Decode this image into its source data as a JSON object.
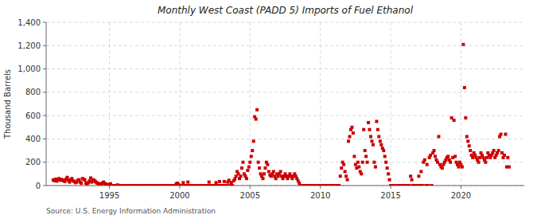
{
  "chart_data": {
    "type": "scatter",
    "title": "Monthly West Coast (PADD 5) Imports of Fuel Ethanol",
    "y_label": "Thousand Barrels",
    "annotations": [
      "Source: U.S. Energy Information Administration"
    ],
    "color": "#CC0000",
    "marker": "square",
    "grid": true,
    "xlim": [
      1990.5,
      2024.5
    ],
    "xticks": [
      1995,
      2000,
      2005,
      2010,
      2015,
      2020
    ],
    "ylim": [
      0,
      1400
    ],
    "yticks": [
      0,
      200,
      400,
      600,
      800,
      {
        "value": 1000,
        "label": "1,000"
      },
      {
        "value": 1200,
        "label": "1,200"
      },
      {
        "value": 1400,
        "label": "1,400"
      }
    ],
    "x": [
      1991.0,
      1991.083,
      1991.167,
      1991.25,
      1991.333,
      1991.417,
      1991.5,
      1991.583,
      1991.667,
      1991.75,
      1991.833,
      1991.917,
      1992.0,
      1992.083,
      1992.167,
      1992.25,
      1992.333,
      1992.417,
      1992.5,
      1992.583,
      1992.667,
      1992.75,
      1992.833,
      1992.917,
      1993.0,
      1993.083,
      1993.167,
      1993.25,
      1993.333,
      1993.417,
      1993.5,
      1993.583,
      1993.667,
      1993.75,
      1993.833,
      1993.917,
      1994.0,
      1994.083,
      1994.167,
      1994.25,
      1994.333,
      1994.417,
      1994.5,
      1994.583,
      1994.667,
      1994.75,
      1994.833,
      1994.917,
      1995.0,
      1995.083,
      1995.167,
      1995.25,
      1995.333,
      1995.417,
      1995.5,
      1995.583,
      1995.667,
      1995.75,
      1995.833,
      1995.917,
      1996.0,
      1996.083,
      1996.167,
      1996.25,
      1996.333,
      1996.417,
      1996.5,
      1996.583,
      1996.667,
      1996.75,
      1996.833,
      1996.917,
      1997.0,
      1997.083,
      1997.167,
      1997.25,
      1997.333,
      1997.417,
      1997.5,
      1997.583,
      1997.667,
      1997.75,
      1997.833,
      1997.917,
      1998.0,
      1998.083,
      1998.167,
      1998.25,
      1998.333,
      1998.417,
      1998.5,
      1998.583,
      1998.667,
      1998.75,
      1998.833,
      1998.917,
      1999.0,
      1999.083,
      1999.167,
      1999.25,
      1999.333,
      1999.417,
      1999.5,
      1999.583,
      1999.667,
      1999.75,
      1999.833,
      1999.917,
      2000.0,
      2000.083,
      2000.167,
      2000.25,
      2000.333,
      2000.417,
      2000.5,
      2000.583,
      2000.667,
      2000.75,
      2000.833,
      2000.917,
      2001.0,
      2001.083,
      2001.167,
      2001.25,
      2001.333,
      2001.417,
      2001.5,
      2001.583,
      2001.667,
      2001.75,
      2001.833,
      2001.917,
      2002.0,
      2002.083,
      2002.167,
      2002.25,
      2002.333,
      2002.417,
      2002.5,
      2002.583,
      2002.667,
      2002.75,
      2002.833,
      2002.917,
      2003.0,
      2003.083,
      2003.167,
      2003.25,
      2003.333,
      2003.417,
      2003.5,
      2003.583,
      2003.667,
      2003.75,
      2003.833,
      2003.917,
      2004.0,
      2004.083,
      2004.167,
      2004.25,
      2004.333,
      2004.417,
      2004.5,
      2004.583,
      2004.667,
      2004.75,
      2004.833,
      2004.917,
      2005.0,
      2005.083,
      2005.167,
      2005.25,
      2005.333,
      2005.417,
      2005.5,
      2005.583,
      2005.667,
      2005.75,
      2005.833,
      2005.917,
      2006.0,
      2006.083,
      2006.167,
      2006.25,
      2006.333,
      2006.417,
      2006.5,
      2006.583,
      2006.667,
      2006.75,
      2006.833,
      2006.917,
      2007.0,
      2007.083,
      2007.167,
      2007.25,
      2007.333,
      2007.417,
      2007.5,
      2007.583,
      2007.667,
      2007.75,
      2007.833,
      2007.917,
      2008.0,
      2008.083,
      2008.167,
      2008.25,
      2008.333,
      2008.417,
      2008.5,
      2008.583,
      2008.667,
      2008.75,
      2008.833,
      2008.917,
      2009.0,
      2009.083,
      2009.167,
      2009.25,
      2009.333,
      2009.417,
      2009.5,
      2009.583,
      2009.667,
      2009.75,
      2009.833,
      2009.917,
      2010.0,
      2010.083,
      2010.167,
      2010.25,
      2010.333,
      2010.417,
      2010.5,
      2010.583,
      2010.667,
      2010.75,
      2010.833,
      2010.917,
      2011.0,
      2011.083,
      2011.167,
      2011.25,
      2011.333,
      2011.417,
      2011.5,
      2011.583,
      2011.667,
      2011.75,
      2011.833,
      2011.917,
      2012.0,
      2012.083,
      2012.167,
      2012.25,
      2012.333,
      2012.417,
      2012.5,
      2012.583,
      2012.667,
      2012.75,
      2012.833,
      2012.917,
      2013.0,
      2013.083,
      2013.167,
      2013.25,
      2013.333,
      2013.417,
      2013.5,
      2013.583,
      2013.667,
      2013.75,
      2013.833,
      2013.917,
      2014.0,
      2014.083,
      2014.167,
      2014.25,
      2014.333,
      2014.417,
      2014.5,
      2014.583,
      2014.667,
      2014.75,
      2014.833,
      2014.917,
      2015.0,
      2015.083,
      2015.167,
      2015.25,
      2015.333,
      2015.417,
      2015.5,
      2015.583,
      2015.667,
      2015.75,
      2015.833,
      2015.917,
      2016.0,
      2016.083,
      2016.167,
      2016.25,
      2016.333,
      2016.417,
      2016.5,
      2016.583,
      2016.667,
      2016.75,
      2016.833,
      2016.917,
      2017.0,
      2017.083,
      2017.167,
      2017.25,
      2017.333,
      2017.417,
      2017.5,
      2017.583,
      2017.667,
      2017.75,
      2017.833,
      2017.917,
      2018.0,
      2018.083,
      2018.167,
      2018.25,
      2018.333,
      2018.417,
      2018.5,
      2018.583,
      2018.667,
      2018.75,
      2018.833,
      2018.917,
      2019.0,
      2019.083,
      2019.167,
      2019.25,
      2019.333,
      2019.417,
      2019.5,
      2019.583,
      2019.667,
      2019.75,
      2019.833,
      2019.917,
      2020.0,
      2020.083,
      2020.167,
      2020.25,
      2020.333,
      2020.417,
      2020.5,
      2020.583,
      2020.667,
      2020.75,
      2020.833,
      2020.917,
      2021.0,
      2021.083,
      2021.167,
      2021.25,
      2021.333,
      2021.417,
      2021.5,
      2021.583,
      2021.667,
      2021.75,
      2021.833,
      2021.917,
      2022.0,
      2022.083,
      2022.167,
      2022.25,
      2022.333,
      2022.417,
      2022.5,
      2022.583,
      2022.667,
      2022.75,
      2022.833,
      2022.917,
      2023.0,
      2023.083,
      2023.167,
      2023.25,
      2023.333,
      2023.417
    ],
    "values": [
      48,
      42,
      55,
      38,
      50,
      60,
      45,
      52,
      48,
      40,
      35,
      55,
      70,
      45,
      30,
      50,
      60,
      40,
      35,
      25,
      30,
      45,
      50,
      30,
      20,
      60,
      55,
      48,
      20,
      15,
      25,
      40,
      65,
      30,
      50,
      45,
      35,
      25,
      20,
      15,
      10,
      15,
      20,
      30,
      18,
      12,
      8,
      5,
      10,
      15,
      0,
      0,
      0,
      0,
      0,
      5,
      0,
      0,
      0,
      0,
      0,
      0,
      0,
      0,
      0,
      0,
      0,
      0,
      0,
      0,
      0,
      0,
      0,
      0,
      0,
      0,
      0,
      0,
      0,
      0,
      0,
      0,
      0,
      0,
      0,
      0,
      0,
      0,
      0,
      0,
      0,
      0,
      0,
      0,
      0,
      0,
      0,
      0,
      0,
      0,
      0,
      0,
      0,
      0,
      0,
      15,
      20,
      10,
      0,
      0,
      0,
      25,
      0,
      0,
      0,
      30,
      0,
      0,
      0,
      0,
      0,
      0,
      0,
      0,
      0,
      0,
      0,
      0,
      0,
      0,
      0,
      0,
      0,
      30,
      0,
      0,
      0,
      0,
      0,
      25,
      0,
      0,
      35,
      0,
      0,
      0,
      35,
      0,
      0,
      30,
      45,
      0,
      25,
      0,
      40,
      55,
      80,
      120,
      100,
      60,
      80,
      150,
      200,
      100,
      80,
      60,
      130,
      160,
      200,
      250,
      300,
      380,
      590,
      570,
      650,
      200,
      150,
      100,
      80,
      60,
      100,
      150,
      200,
      180,
      120,
      90,
      80,
      100,
      120,
      80,
      60,
      100,
      80,
      100,
      120,
      80,
      60,
      80,
      100,
      80,
      60,
      80,
      100,
      80,
      60,
      80,
      100,
      80,
      60,
      40,
      20,
      0,
      0,
      0,
      0,
      0,
      0,
      0,
      0,
      0,
      0,
      0,
      0,
      0,
      0,
      0,
      0,
      0,
      0,
      0,
      0,
      0,
      0,
      0,
      0,
      0,
      0,
      0,
      0,
      0,
      0,
      0,
      0,
      0,
      0,
      80,
      150,
      200,
      180,
      120,
      80,
      50,
      380,
      420,
      480,
      500,
      450,
      250,
      180,
      150,
      200,
      160,
      120,
      100,
      200,
      480,
      300,
      250,
      200,
      540,
      480,
      420,
      380,
      350,
      200,
      160,
      550,
      480,
      420,
      380,
      350,
      320,
      300,
      250,
      200,
      150,
      100,
      50,
      0,
      0,
      0,
      0,
      0,
      0,
      0,
      0,
      0,
      0,
      0,
      0,
      0,
      0,
      0,
      0,
      0,
      80,
      50,
      0,
      0,
      0,
      0,
      0,
      80,
      0,
      120,
      0,
      200,
      220,
      0,
      180,
      0,
      240,
      260,
      0,
      280,
      300,
      250,
      220,
      200,
      420,
      180,
      160,
      150,
      180,
      200,
      220,
      240,
      250,
      220,
      200,
      580,
      240,
      560,
      250,
      200,
      180,
      160,
      200,
      180,
      160,
      1210,
      840,
      580,
      420,
      380,
      340,
      300,
      260,
      240,
      280,
      260,
      240,
      220,
      200,
      240,
      280,
      260,
      240,
      220,
      200,
      240,
      280,
      260,
      240,
      260,
      280,
      300,
      240,
      260,
      280,
      300,
      420,
      440,
      280,
      240,
      260,
      440,
      160,
      240,
      160
    ]
  }
}
